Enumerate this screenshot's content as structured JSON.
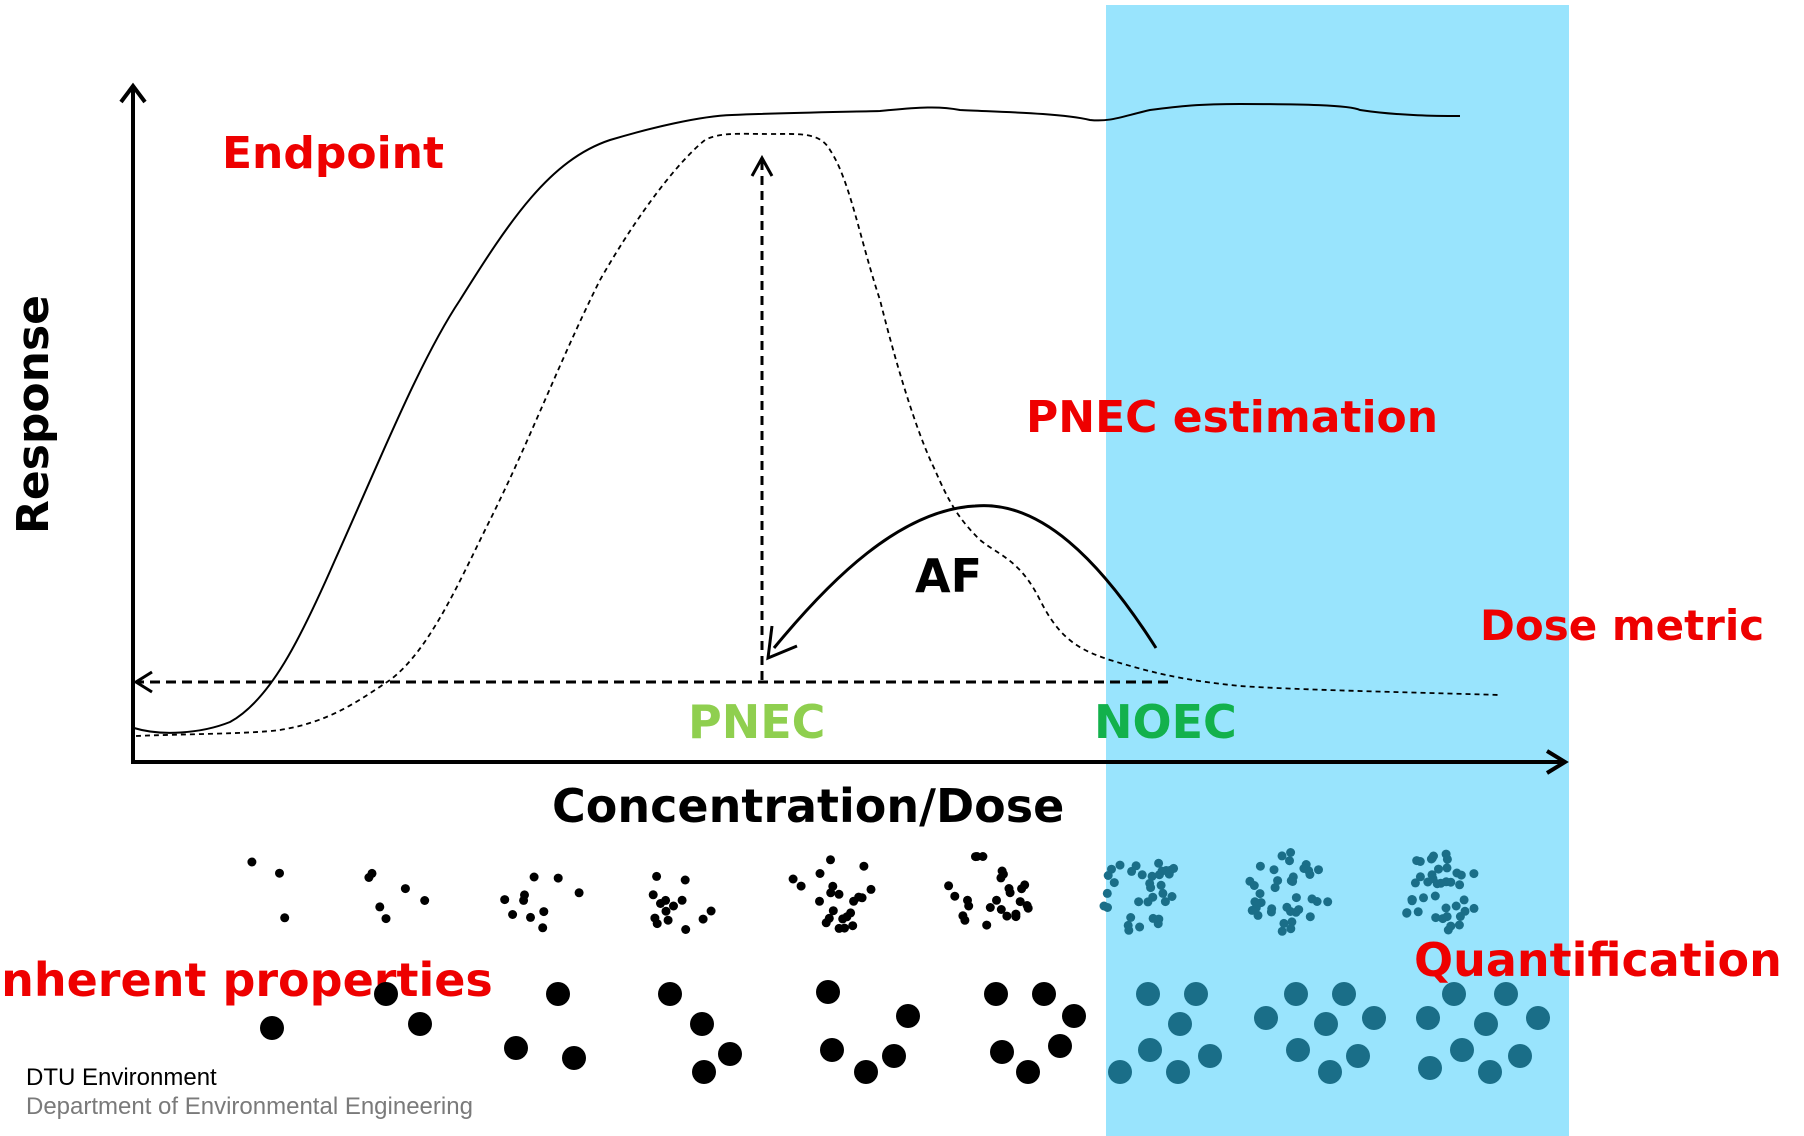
{
  "labels": {
    "endpoint": "Endpoint",
    "pnec_estimation": "PNEC estimation",
    "dose_metric": "Dose metric",
    "af": "AF",
    "pnec": "PNEC",
    "noec": "NOEC",
    "y_axis": "Response",
    "x_axis": "Concentration/Dose",
    "inherent_properties": "Inherent properties",
    "quantification": "Quantification"
  },
  "footer": {
    "org": "DTU Environment",
    "dept": "Department of Environmental Engineering"
  },
  "colors": {
    "highlight_band": "#99e4fd",
    "label_red": "#ee0000",
    "pnec_green": "#8fcf4f",
    "noec_green": "#13b14c",
    "dot_black": "#000000",
    "dot_teal": "#1a6e88",
    "axis": "#000000"
  },
  "icons": {
    "small_particle_groups": 9,
    "large_particle_groups": 9,
    "arrow_style": "open-chevron"
  }
}
